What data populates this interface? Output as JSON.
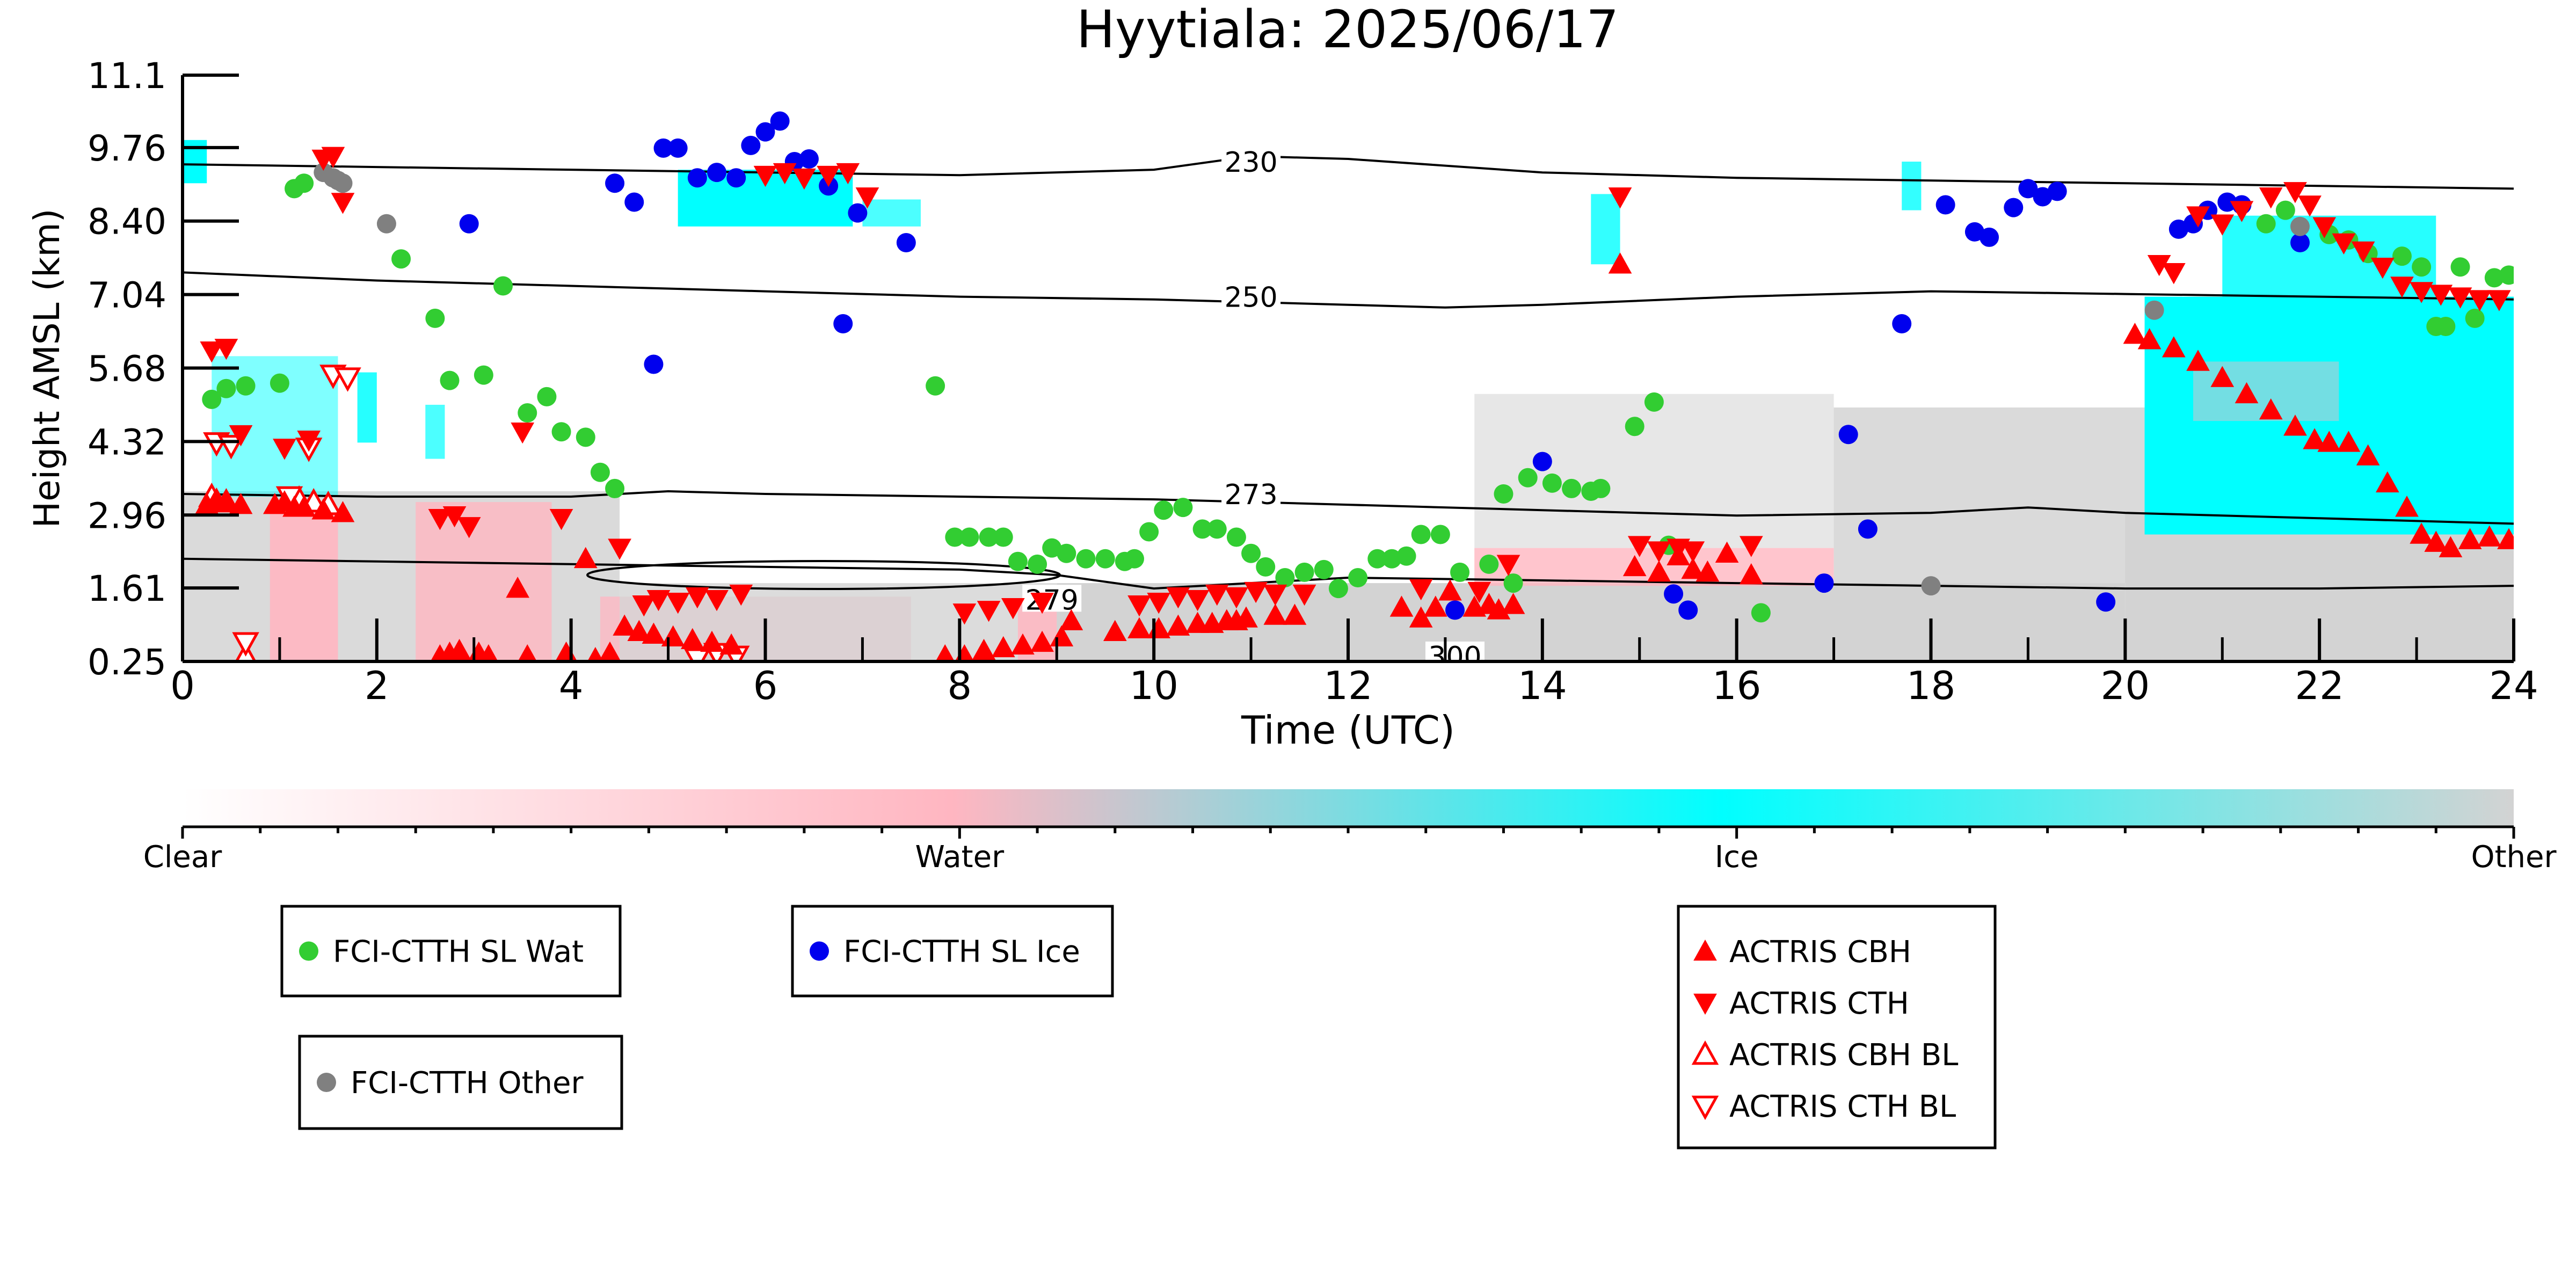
{
  "chart_data": {
    "type": "scatter",
    "title": "Hyytiala: 2025/06/17",
    "xlabel": "Time (UTC)",
    "ylabel": "Height AMSL (km)",
    "xlim": [
      0,
      24
    ],
    "ylim": [
      0.25,
      11.1
    ],
    "xticks": [
      "0",
      "2",
      "4",
      "6",
      "8",
      "10",
      "12",
      "14",
      "16",
      "18",
      "20",
      "22",
      "24"
    ],
    "yticks": [
      "0.25",
      "1.61",
      "2.96",
      "4.32",
      "5.68",
      "7.04",
      "8.40",
      "9.76",
      "11.1"
    ],
    "grid": false,
    "colorbar": {
      "labels": [
        "Clear",
        "Water",
        "Ice",
        "Other"
      ],
      "colors": [
        "#ffffff",
        "#ffb6c1",
        "#00ffff",
        "#d3d3d3"
      ]
    },
    "contours": [
      {
        "label": "230",
        "x": [
          0,
          2,
          4,
          6,
          8,
          10,
          11,
          12,
          14,
          16,
          18,
          20,
          22,
          24
        ],
        "y": [
          9.45,
          9.4,
          9.35,
          9.3,
          9.25,
          9.35,
          9.6,
          9.55,
          9.3,
          9.2,
          9.15,
          9.1,
          9.05,
          9.0
        ]
      },
      {
        "label": "250",
        "x": [
          0,
          2,
          4,
          6,
          8,
          10,
          12,
          13,
          14,
          16,
          18,
          20,
          22,
          24
        ],
        "y": [
          7.45,
          7.3,
          7.2,
          7.1,
          7.0,
          6.95,
          6.85,
          6.8,
          6.85,
          7.0,
          7.1,
          7.05,
          7.0,
          6.95
        ]
      },
      {
        "label": "273",
        "x": [
          0,
          2,
          4,
          5,
          6,
          8,
          10,
          12,
          14,
          16,
          18,
          19,
          20,
          22,
          24
        ],
        "y": [
          3.35,
          3.3,
          3.3,
          3.4,
          3.35,
          3.3,
          3.25,
          3.15,
          3.05,
          2.95,
          3.0,
          3.1,
          3.0,
          2.9,
          2.8
        ]
      },
      {
        "label": "279",
        "x": [
          0,
          2,
          4,
          6,
          8,
          9,
          10,
          12,
          14,
          16,
          18,
          20,
          22,
          24
        ],
        "y": [
          2.15,
          2.1,
          2.05,
          2.0,
          1.95,
          1.85,
          1.6,
          1.8,
          1.75,
          1.7,
          1.65,
          1.6,
          1.6,
          1.65
        ]
      },
      {
        "label": "300",
        "x": [],
        "y": []
      }
    ],
    "series": [
      {
        "name": "FCI-CTTH SL Wat",
        "color": "#32cd32",
        "marker": "circle",
        "x": [
          0.3,
          0.45,
          0.65,
          1.0,
          1.15,
          1.25,
          2.25,
          2.6,
          2.75,
          3.1,
          3.3,
          3.55,
          3.75,
          3.9,
          4.15,
          4.3,
          4.45,
          7.75,
          7.95,
          8.1,
          8.3,
          8.45,
          8.6,
          8.8,
          8.95,
          9.1,
          9.3,
          9.5,
          9.7,
          9.8,
          9.95,
          10.1,
          10.3,
          10.5,
          10.65,
          10.85,
          11.0,
          11.15,
          11.35,
          11.55,
          11.75,
          11.9,
          12.1,
          12.3,
          12.45,
          12.6,
          12.75,
          12.95,
          13.15,
          13.45,
          13.6,
          13.7,
          13.85,
          14.1,
          14.3,
          14.5,
          14.6,
          14.95,
          15.15,
          15.3,
          16.25,
          21.45,
          21.65,
          22.1,
          22.3,
          22.5,
          22.85,
          23.05,
          23.2,
          23.3,
          23.45,
          23.6,
          23.8,
          23.95
        ],
        "y": [
          5.1,
          5.3,
          5.35,
          5.4,
          9.0,
          9.1,
          7.7,
          6.6,
          5.45,
          5.55,
          7.2,
          4.85,
          5.15,
          4.5,
          4.4,
          3.75,
          3.45,
          5.35,
          2.55,
          2.55,
          2.55,
          2.55,
          2.1,
          2.05,
          2.35,
          2.25,
          2.15,
          2.15,
          2.1,
          2.15,
          2.65,
          3.05,
          3.1,
          2.7,
          2.7,
          2.55,
          2.25,
          2.0,
          1.8,
          1.9,
          1.95,
          1.6,
          1.8,
          2.15,
          2.15,
          2.2,
          2.6,
          2.6,
          1.9,
          2.05,
          3.35,
          1.7,
          3.65,
          3.55,
          3.45,
          3.4,
          3.45,
          4.6,
          5.05,
          2.4,
          1.15,
          8.35,
          8.6,
          8.15,
          8.05,
          7.8,
          7.75,
          7.55,
          6.45,
          6.45,
          7.55,
          6.6,
          7.35,
          7.4
        ]
      },
      {
        "name": "FCI-CTTH SL Ice",
        "color": "#0000ee",
        "marker": "circle",
        "x": [
          2.95,
          4.45,
          4.65,
          4.85,
          4.95,
          5.1,
          5.3,
          5.5,
          5.7,
          5.85,
          6.0,
          6.15,
          6.3,
          6.45,
          6.65,
          6.8,
          6.95,
          7.45,
          13.1,
          14.0,
          15.35,
          15.5,
          16.9,
          17.15,
          17.35,
          17.7,
          18.15,
          18.45,
          18.6,
          18.85,
          19.0,
          19.15,
          19.3,
          19.8,
          20.55,
          20.7,
          20.85,
          21.05,
          21.2,
          21.8
        ],
        "y": [
          8.35,
          9.1,
          8.75,
          5.75,
          9.75,
          9.75,
          9.2,
          9.3,
          9.2,
          9.8,
          10.05,
          10.25,
          9.5,
          9.55,
          9.05,
          6.5,
          8.55,
          8.0,
          1.2,
          3.95,
          1.5,
          1.2,
          1.7,
          4.45,
          2.7,
          6.5,
          8.7,
          8.2,
          8.1,
          8.65,
          9.0,
          8.85,
          8.95,
          1.35,
          8.25,
          8.35,
          8.6,
          8.75,
          8.7,
          8.0
        ]
      },
      {
        "name": "FCI-CTTH Other",
        "color": "#808080",
        "marker": "circle",
        "x": [
          1.45,
          1.55,
          1.6,
          1.65,
          2.1,
          18.0,
          20.3,
          21.8
        ],
        "y": [
          9.3,
          9.2,
          9.15,
          9.1,
          8.35,
          1.65,
          6.75,
          8.3
        ]
      },
      {
        "name": "ACTRIS CBH",
        "color": "#ff0000",
        "marker": "triangle-up",
        "x": [
          0.25,
          0.35,
          0.45,
          0.6,
          0.95,
          1.05,
          1.15,
          1.25,
          1.45,
          1.65,
          2.65,
          2.75,
          2.85,
          3.05,
          3.15,
          3.45,
          3.55,
          3.95,
          4.15,
          4.25,
          4.4,
          4.55,
          4.7,
          4.85,
          5.05,
          5.25,
          5.45,
          5.65,
          7.85,
          8.05,
          8.25,
          8.45,
          8.65,
          8.85,
          9.05,
          9.15,
          9.6,
          9.85,
          10.05,
          10.25,
          10.45,
          10.6,
          10.75,
          10.85,
          10.95,
          11.25,
          11.45,
          12.55,
          12.75,
          12.9,
          13.05,
          13.3,
          13.45,
          13.55,
          13.7,
          14.8,
          14.95,
          15.2,
          15.4,
          15.55,
          15.7,
          15.9,
          16.15,
          20.1,
          20.25,
          20.5,
          20.75,
          21.0,
          21.25,
          21.5,
          21.75,
          21.95,
          22.1,
          22.3,
          22.5,
          22.7,
          22.9,
          23.05,
          23.2,
          23.35,
          23.55,
          23.75,
          23.95
        ],
        "y": [
          3.15,
          3.25,
          3.2,
          3.15,
          3.15,
          3.2,
          3.1,
          3.1,
          3.05,
          3.0,
          0.35,
          0.4,
          0.45,
          0.4,
          0.35,
          1.6,
          0.35,
          0.4,
          2.15,
          0.3,
          0.4,
          0.9,
          0.8,
          0.75,
          0.7,
          0.65,
          0.6,
          0.55,
          0.35,
          0.35,
          0.45,
          0.5,
          0.55,
          0.6,
          0.7,
          1.0,
          0.8,
          0.85,
          0.85,
          0.9,
          0.95,
          0.95,
          1.0,
          1.0,
          1.05,
          1.1,
          1.1,
          1.25,
          1.05,
          1.25,
          1.55,
          1.25,
          1.3,
          1.2,
          1.3,
          7.6,
          2.0,
          1.9,
          2.2,
          1.95,
          1.9,
          2.25,
          1.85,
          6.3,
          6.2,
          6.05,
          5.8,
          5.5,
          5.2,
          4.9,
          4.6,
          4.35,
          4.3,
          4.3,
          4.05,
          3.55,
          3.1,
          2.6,
          2.45,
          2.35,
          2.5,
          2.55,
          2.5
        ]
      },
      {
        "name": "ACTRIS CTH",
        "color": "#ff0000",
        "marker": "triangle-down",
        "x": [
          0.3,
          0.45,
          0.6,
          1.05,
          1.3,
          1.45,
          1.55,
          1.65,
          2.65,
          2.8,
          2.95,
          3.5,
          3.9,
          4.5,
          4.75,
          4.9,
          5.1,
          5.3,
          5.5,
          5.75,
          6.0,
          6.2,
          6.4,
          6.65,
          6.85,
          7.05,
          8.05,
          8.3,
          8.55,
          8.85,
          9.85,
          10.05,
          10.25,
          10.45,
          10.65,
          10.85,
          11.05,
          11.25,
          11.55,
          12.75,
          13.35,
          13.65,
          14.8,
          15.0,
          15.2,
          15.4,
          15.55,
          16.15,
          20.35,
          20.5,
          20.75,
          21.0,
          21.2,
          21.5,
          21.75,
          21.9,
          22.05,
          22.25,
          22.45,
          22.65,
          22.85,
          23.05,
          23.25,
          23.45,
          23.65,
          23.85
        ],
        "y": [
          6.0,
          6.05,
          4.45,
          4.2,
          4.35,
          9.55,
          9.6,
          8.75,
          2.9,
          2.95,
          2.75,
          4.5,
          2.9,
          2.35,
          1.3,
          1.4,
          1.35,
          1.45,
          1.4,
          1.5,
          9.25,
          9.3,
          9.2,
          9.25,
          9.3,
          8.85,
          1.15,
          1.2,
          1.25,
          1.35,
          1.3,
          1.35,
          1.45,
          1.4,
          1.5,
          1.45,
          1.55,
          1.5,
          1.5,
          1.6,
          1.55,
          2.05,
          8.85,
          2.4,
          2.3,
          2.35,
          2.3,
          2.4,
          7.6,
          7.45,
          8.5,
          8.35,
          8.6,
          8.85,
          8.95,
          8.7,
          8.3,
          8.0,
          7.85,
          7.55,
          7.2,
          7.1,
          7.05,
          7.0,
          6.95,
          6.95
        ]
      },
      {
        "name": "ACTRIS CBH BL",
        "color": "#ff0000",
        "marker": "triangle-up-open",
        "x": [
          0.3,
          0.45,
          0.65,
          1.2,
          1.35,
          1.5
        ],
        "y": [
          3.3,
          3.2,
          0.35,
          3.25,
          3.2,
          3.15
        ]
      },
      {
        "name": "ACTRIS CTH BL",
        "color": "#ff0000",
        "marker": "triangle-down-open",
        "x": [
          0.35,
          0.5,
          0.65,
          1.1,
          1.3,
          1.55,
          1.7,
          5.3,
          5.5,
          5.7
        ],
        "y": [
          4.3,
          4.25,
          0.6,
          3.3,
          4.2,
          5.55,
          5.5,
          0.3,
          0.4,
          0.35
        ]
      }
    ],
    "legends": [
      {
        "entries": [
          "FCI-CTTH SL Wat"
        ]
      },
      {
        "entries": [
          "FCI-CTTH SL Ice"
        ]
      },
      {
        "entries": [
          "FCI-CTTH Other"
        ]
      },
      {
        "entries": [
          "ACTRIS CBH",
          "ACTRIS CTH",
          "ACTRIS CBH BL",
          "ACTRIS CTH BL"
        ]
      }
    ]
  }
}
